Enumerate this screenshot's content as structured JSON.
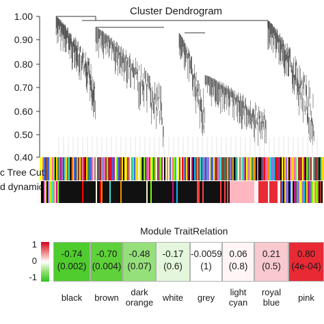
{
  "dendrogram": {
    "title": "Cluster Dendrogram",
    "y_ticks": [
      "1.00",
      "0.90",
      "0.80",
      "0.70",
      "0.60",
      "0.50",
      "0.40"
    ],
    "y_range": [
      0.4,
      1.0
    ],
    "track_labels": [
      "c Tree Cut",
      "d dynamic"
    ]
  },
  "module_trait": {
    "title": "Module TraitRelation",
    "scale_ticks": [
      "1",
      "0",
      "-1"
    ],
    "cells": [
      {
        "module": "black",
        "corr": "-0.74",
        "pval": "(0.002)",
        "color": "#4fcc2e"
      },
      {
        "module": "brown",
        "corr": "-0.70",
        "pval": "(0.004)",
        "color": "#5fd13a"
      },
      {
        "module": "dark\norange",
        "corr": "-0.48",
        "pval": "(0.07)",
        "color": "#96e07c"
      },
      {
        "module": "white",
        "corr": "-0.17",
        "pval": "(0.6)",
        "color": "#e4f7dc"
      },
      {
        "module": "grey",
        "corr": "-0.0059",
        "pval": "(1)",
        "color": "#ffffff"
      },
      {
        "module": "light\ncyan",
        "corr": "0.06",
        "pval": "(0.8)",
        "color": "#fff5f6"
      },
      {
        "module": "royal\nblue",
        "corr": "0.21",
        "pval": "(0.5)",
        "color": "#f9c9d0"
      },
      {
        "module": "pink",
        "corr": "0.80",
        "pval": "(4e-04)",
        "color": "#e82a34"
      }
    ]
  }
}
